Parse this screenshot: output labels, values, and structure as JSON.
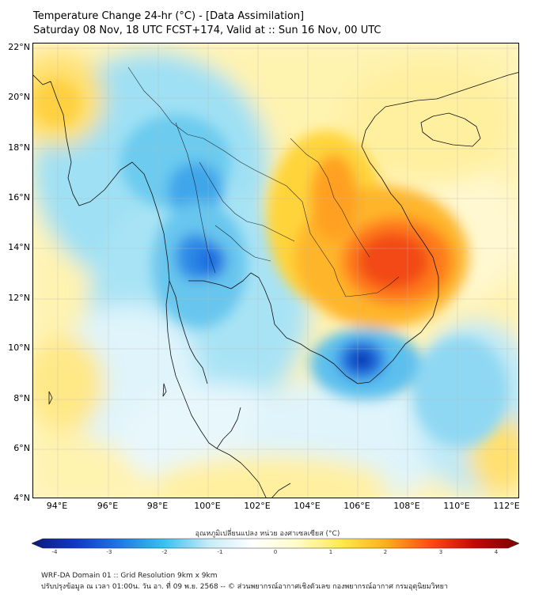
{
  "header": {
    "title": "Temperature Change 24-hr (°C) - [Data Assimilation]",
    "subtitle": "Saturday 08 Nov, 18 UTC FCST+174, Valid at :: Sun 16 Nov, 00 UTC"
  },
  "map": {
    "lat_labels": [
      "22°N",
      "20°N",
      "18°N",
      "16°N",
      "14°N",
      "12°N",
      "10°N",
      "8°N",
      "6°N",
      "4°N"
    ],
    "lon_labels": [
      "94°E",
      "96°E",
      "98°E",
      "100°E",
      "102°E",
      "104°E",
      "106°E",
      "108°E",
      "110°E",
      "112°E"
    ],
    "lat_range": [
      4,
      22.2
    ],
    "lon_range": [
      93,
      112.5
    ],
    "anomalies": [
      {
        "name": "cooling-north-myanmar",
        "lon": 98.5,
        "lat": 19.5,
        "value": -1.5
      },
      {
        "name": "cooling-core-north",
        "lon": 99.5,
        "lat": 16.4,
        "value": -2.3
      },
      {
        "name": "cooling-core-central",
        "lon": 99.6,
        "lat": 13.8,
        "value": -2.2
      },
      {
        "name": "cooling-core-mekong-delta",
        "lon": 105.8,
        "lat": 9.6,
        "value": -3.4
      },
      {
        "name": "cooling-east-sea",
        "lon": 110.5,
        "lat": 8.5,
        "value": -1.2
      },
      {
        "name": "warming-laos",
        "lon": 104.5,
        "lat": 16.2,
        "value": 2.0
      },
      {
        "name": "warming-cambodia-vietnam",
        "lon": 107.2,
        "lat": 13.8,
        "value": 3.0
      },
      {
        "name": "warming-gulf-of-tonkin",
        "lon": 109.0,
        "lat": 19.5,
        "value": 1.0
      },
      {
        "name": "warming-west-coast",
        "lon": 93.5,
        "lat": 20.2,
        "value": 1.3
      }
    ]
  },
  "colorbar": {
    "label": "อุณหภูมิเปลี่ยนแปลง หน่วย องศาเซลเซียส (°C)",
    "min": -4,
    "max": 4,
    "ticks": [
      "-4",
      "-3",
      "-2",
      "-1",
      "0",
      "1",
      "2",
      "3",
      "4"
    ],
    "colors": [
      "#0a1a7a",
      "#1238c8",
      "#1e7ae6",
      "#38c2ef",
      "#c6ecf7",
      "#ffffff",
      "#fffbc8",
      "#ffe94a",
      "#ffae1e",
      "#ff4a10",
      "#c20808",
      "#7a0000"
    ]
  },
  "footer": {
    "line1": "WRF-DA Domain 01 :: Grid Resolution 9km x 9km",
    "line2": "ปรับปรุงข้อมูล ณ เวลา 01:00น. วัน อา. ที่ 09 พ.ย. 2568 -- © ส่วนพยากรณ์อากาศเชิงตัวเลข กองพยากรณ์อากาศ กรมอุตุนิยมวิทยา"
  }
}
